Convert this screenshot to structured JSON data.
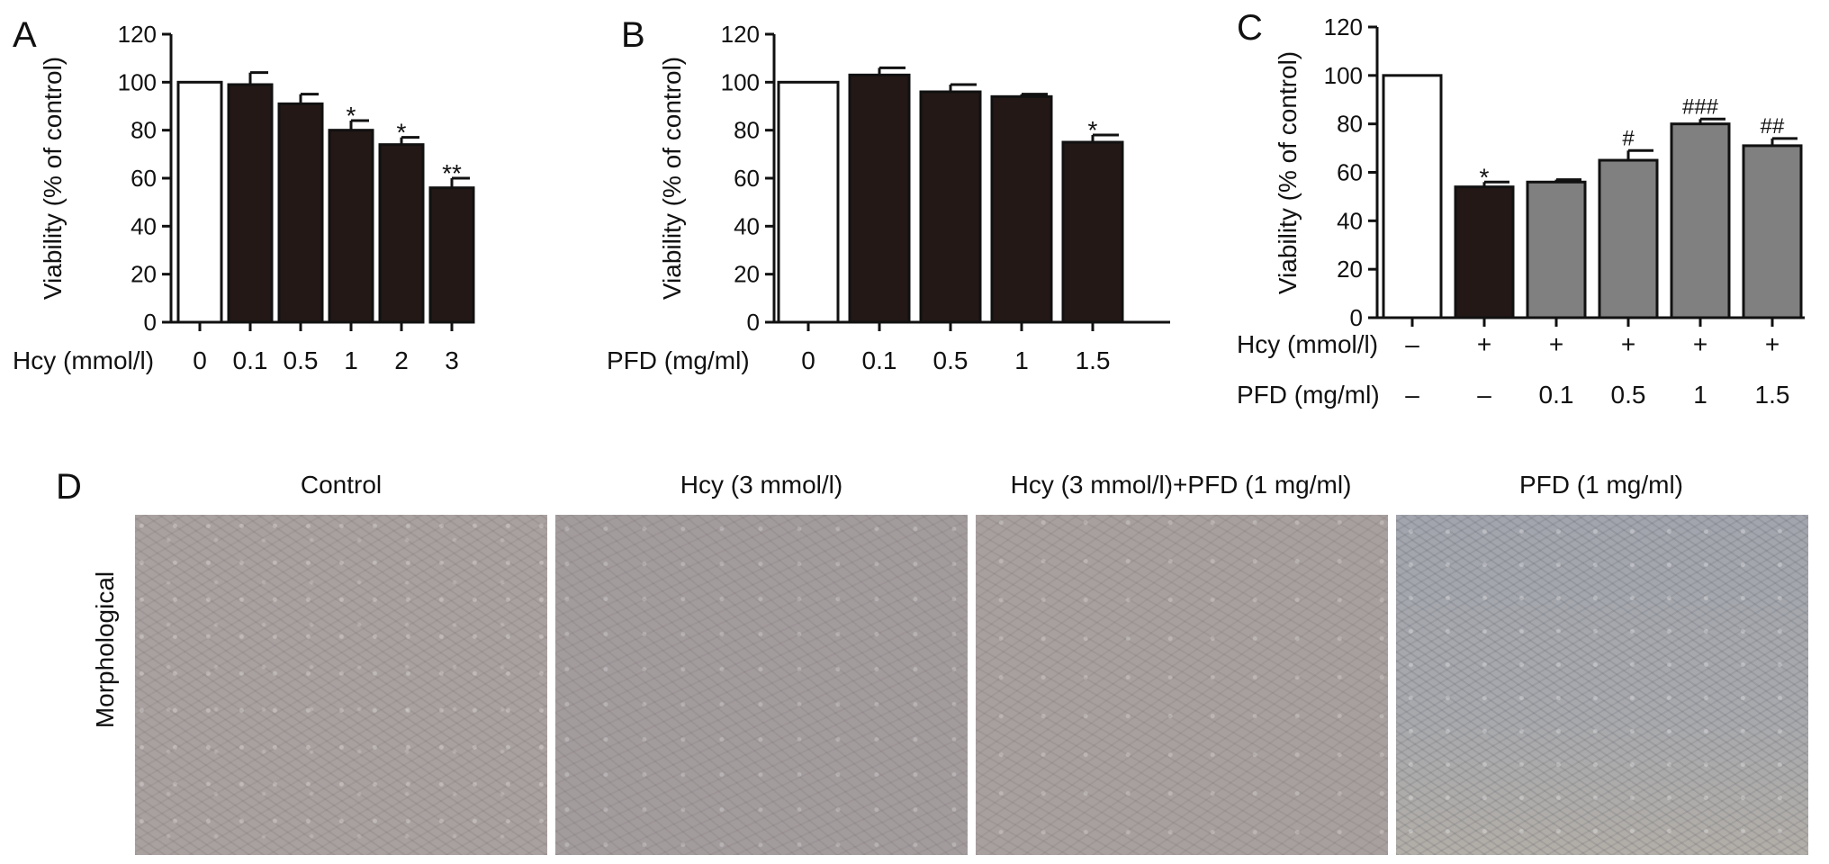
{
  "chart_data": [
    {
      "type": "bar",
      "panel_label": "A",
      "ylabel": "Viability (% of control)",
      "yticks": [
        "0",
        "20",
        "40",
        "60",
        "80",
        "100",
        "120"
      ],
      "ylim": [
        0,
        120
      ],
      "x_title": "Hcy (mmol/l)",
      "categories": [
        "0",
        "0.1",
        "0.5",
        "1",
        "2",
        "3"
      ],
      "values": [
        100,
        99,
        91,
        80,
        74,
        56
      ],
      "errors": [
        0,
        5,
        4,
        4,
        3,
        4
      ],
      "fills": [
        "white",
        "dark",
        "dark",
        "dark",
        "dark",
        "dark"
      ],
      "annotations": [
        "",
        "",
        "",
        "*",
        "*",
        "**"
      ]
    },
    {
      "type": "bar",
      "panel_label": "B",
      "ylabel": "Viability (% of control)",
      "yticks": [
        "0",
        "20",
        "40",
        "60",
        "80",
        "100",
        "120"
      ],
      "ylim": [
        0,
        120
      ],
      "x_title": "PFD (mg/ml)",
      "categories": [
        "0",
        "0.1",
        "0.5",
        "1",
        "1.5"
      ],
      "values": [
        100,
        103,
        96,
        94,
        75
      ],
      "errors": [
        0,
        3,
        3,
        1,
        3
      ],
      "fills": [
        "white",
        "dark",
        "dark",
        "dark",
        "dark"
      ],
      "annotations": [
        "",
        "",
        "",
        "",
        "*"
      ]
    },
    {
      "type": "bar",
      "panel_label": "C",
      "ylabel": "Viability (% of control)",
      "yticks": [
        "0",
        "20",
        "40",
        "60",
        "80",
        "100",
        "120"
      ],
      "ylim": [
        0,
        120
      ],
      "row_titles": [
        "Hcy (mmol/l)",
        "PFD (mg/ml)"
      ],
      "rows": [
        [
          "–",
          "+",
          "+",
          "+",
          "+",
          "+"
        ],
        [
          "–",
          "–",
          "0.1",
          "0.5",
          "1",
          "1.5"
        ]
      ],
      "values": [
        100,
        54,
        56,
        65,
        80,
        71
      ],
      "errors": [
        0,
        2,
        1,
        4,
        2,
        3
      ],
      "fills": [
        "white",
        "dark",
        "gray",
        "gray",
        "gray",
        "gray"
      ],
      "annotations": [
        "",
        "*",
        "",
        "#",
        "###",
        "##"
      ]
    }
  ],
  "colors": {
    "dark": "#231816",
    "gray": "#808080",
    "white": "#ffffff",
    "axis": "#111111"
  },
  "panel_d": {
    "label": "D",
    "row_label": "Morphological",
    "images": [
      {
        "title": "Control"
      },
      {
        "title": "Hcy (3 mmol/l)"
      },
      {
        "title": "Hcy (3 mmol/l)+PFD (1 mg/ml)"
      },
      {
        "title": "PFD (1 mg/ml)"
      }
    ]
  }
}
